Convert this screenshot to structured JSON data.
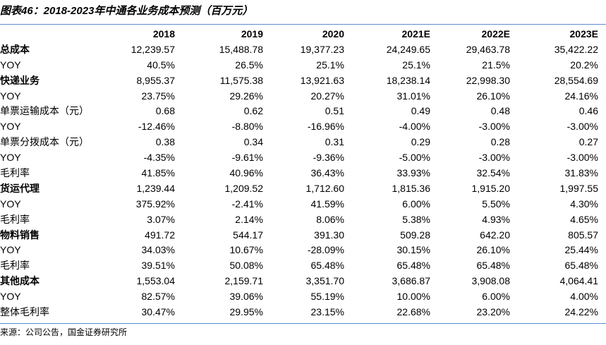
{
  "title": "图表46：2018-2023年中通各业务成本预测（百万元）",
  "header": [
    "",
    "2018",
    "2019",
    "2020",
    "2021E",
    "2022E",
    "2023E"
  ],
  "rows": [
    {
      "label": "总成本",
      "bold": true,
      "values": [
        "12,239.57",
        "15,488.78",
        "19,377.23",
        "24,249.65",
        "29,463.78",
        "35,422.22"
      ]
    },
    {
      "label": "YOY",
      "bold": false,
      "values": [
        "40.5%",
        "26.5%",
        "25.1%",
        "25.1%",
        "21.5%",
        "20.2%"
      ]
    },
    {
      "label": "快递业务",
      "bold": true,
      "values": [
        "8,955.37",
        "11,575.38",
        "13,921.63",
        "18,238.14",
        "22,998.30",
        "28,554.69"
      ]
    },
    {
      "label": "YOY",
      "bold": false,
      "values": [
        "23.75%",
        "29.26%",
        "20.27%",
        "31.01%",
        "26.10%",
        "24.16%"
      ]
    },
    {
      "label": "单票运输成本（元）",
      "bold": false,
      "values": [
        "0.68",
        "0.62",
        "0.51",
        "0.49",
        "0.48",
        "0.46"
      ]
    },
    {
      "label": "YOY",
      "bold": false,
      "values": [
        "-12.46%",
        "-8.80%",
        "-16.96%",
        "-4.00%",
        "-3.00%",
        "-3.00%"
      ]
    },
    {
      "label": "单票分拨成本（元）",
      "bold": false,
      "values": [
        "0.38",
        "0.34",
        "0.31",
        "0.29",
        "0.28",
        "0.27"
      ]
    },
    {
      "label": "YOY",
      "bold": false,
      "values": [
        "-4.35%",
        "-9.61%",
        "-9.36%",
        "-5.00%",
        "-3.00%",
        "-3.00%"
      ]
    },
    {
      "label": "毛利率",
      "bold": false,
      "values": [
        "41.85%",
        "40.96%",
        "36.43%",
        "33.93%",
        "32.54%",
        "31.83%"
      ]
    },
    {
      "label": "货运代理",
      "bold": true,
      "values": [
        "1,239.44",
        "1,209.52",
        "1,712.60",
        "1,815.36",
        "1,915.20",
        "1,997.55"
      ]
    },
    {
      "label": "YOY",
      "bold": false,
      "values": [
        "375.92%",
        "-2.41%",
        "41.59%",
        "6.00%",
        "5.50%",
        "4.30%"
      ]
    },
    {
      "label": "毛利率",
      "bold": false,
      "values": [
        "3.07%",
        "2.14%",
        "8.06%",
        "5.38%",
        "4.93%",
        "4.65%"
      ]
    },
    {
      "label": "物料销售",
      "bold": true,
      "values": [
        "491.72",
        "544.17",
        "391.30",
        "509.28",
        "642.20",
        "805.57"
      ]
    },
    {
      "label": "YOY",
      "bold": false,
      "values": [
        "34.03%",
        "10.67%",
        "-28.09%",
        "30.15%",
        "26.10%",
        "25.44%"
      ]
    },
    {
      "label": "毛利率",
      "bold": false,
      "values": [
        "39.51%",
        "50.08%",
        "65.48%",
        "65.48%",
        "65.48%",
        "65.48%"
      ]
    },
    {
      "label": "其他成本",
      "bold": true,
      "values": [
        "1,553.04",
        "2,159.71",
        "3,351.70",
        "3,686.87",
        "3,908.08",
        "4,064.41"
      ]
    },
    {
      "label": "YOY",
      "bold": false,
      "values": [
        "82.57%",
        "39.06%",
        "55.19%",
        "10.00%",
        "6.00%",
        "4.00%"
      ]
    },
    {
      "label": "整体毛利率",
      "bold": false,
      "values": [
        "30.47%",
        "29.95%",
        "23.15%",
        "22.68%",
        "23.20%",
        "24.22%"
      ]
    }
  ],
  "source": "来源：公司公告，国金证券研究所"
}
